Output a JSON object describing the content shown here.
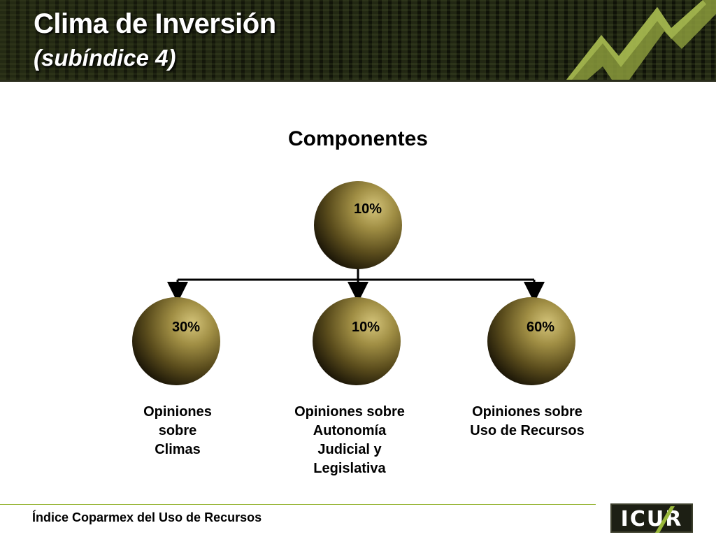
{
  "header": {
    "title": "Clima de Inversión",
    "subtitle": "(subíndice 4)"
  },
  "heading": "Componentes",
  "diagram": {
    "root": {
      "percent": "10%"
    },
    "children": [
      {
        "percent": "30%",
        "label_lines": [
          "Opiniones",
          "sobre",
          "Climas"
        ]
      },
      {
        "percent": "10%",
        "label_lines": [
          "Opiniones sobre",
          "Autonomía",
          "Judicial y",
          "Legislativa"
        ]
      },
      {
        "percent": "60%",
        "label_lines": [
          "Opiniones sobre",
          "Uso de Recursos"
        ]
      }
    ]
  },
  "footer": {
    "text": "Índice Coparmex del Uso de Recursos",
    "logo_text": "ICUR"
  },
  "colors": {
    "sphere_highlight": "#c8b86a",
    "sphere_mid": "#7a6a2a",
    "sphere_shadow": "#1a1406",
    "accent_green": "#9ab83c"
  }
}
